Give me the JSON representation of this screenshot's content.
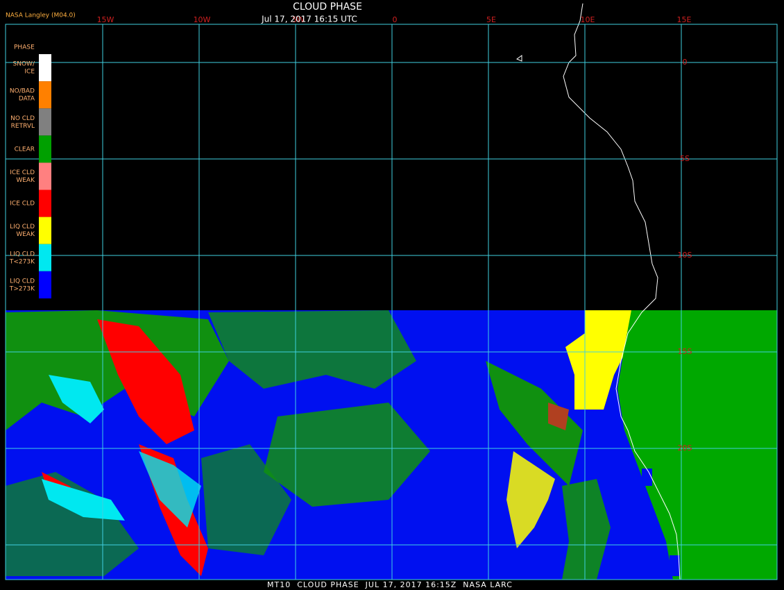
{
  "header": {
    "title": "CLOUD PHASE",
    "subtitle": "Jul 17, 2017 16:15 UTC",
    "producer": "NASA Langley (M04.0)"
  },
  "longitude_labels": [
    "15W",
    "10W",
    "5W",
    "0",
    "5E",
    "10E",
    "15E"
  ],
  "latitude_labels": [
    "0",
    "5S",
    "10S",
    "15S",
    "20S"
  ],
  "legend": {
    "title": "PHASE",
    "items": [
      {
        "lines": [
          "SNOW/",
          "ICE"
        ],
        "color": "#ffffff"
      },
      {
        "lines": [
          "NO/BAD",
          "DATA"
        ],
        "color": "#ff8000"
      },
      {
        "lines": [
          "NO CLD",
          "RETRVL"
        ],
        "color": "#808080"
      },
      {
        "lines": [
          "CLEAR"
        ],
        "color": "#00a000"
      },
      {
        "lines": [
          "ICE CLD",
          "WEAK"
        ],
        "color": "#ff8080"
      },
      {
        "lines": [
          "ICE CLD"
        ],
        "color": "#ff0000"
      },
      {
        "lines": [
          "LIQ CLD",
          "WEAK"
        ],
        "color": "#ffff00"
      },
      {
        "lines": [
          "LIQ CLD",
          "T<273K"
        ],
        "color": "#00e8f0"
      },
      {
        "lines": [
          "LIQ CLD",
          "T>273K"
        ],
        "color": "#0000ff"
      }
    ]
  },
  "footer": "MT10  CLOUD PHASE  JUL 17, 2017 16:15Z  NASA LARC"
}
